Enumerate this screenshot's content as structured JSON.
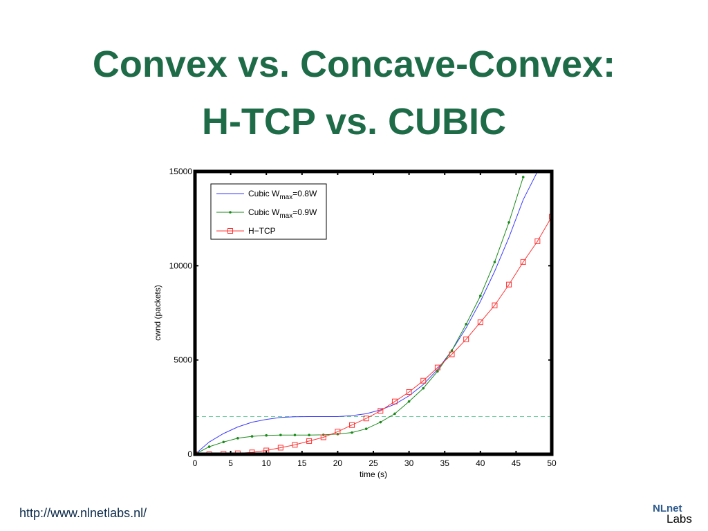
{
  "slide": {
    "title_line1": "Convex vs. Concave-Convex:",
    "title_line2": "H-TCP vs. CUBIC",
    "footer_url": "http://www.nlnetlabs.nl/",
    "logo_part1": "NLnet",
    "logo_part2": "Labs",
    "colors": {
      "title": "#1e6b48",
      "cubic_08": "#3a3aff",
      "cubic_09": "#1a8a1a",
      "htcp": "#ff3333",
      "wmax_line": "#66cc99"
    }
  },
  "chart_data": {
    "type": "line",
    "xlabel": "time (s)",
    "ylabel": "cwnd (packets)",
    "xlim": [
      0,
      50
    ],
    "ylim": [
      0,
      15000
    ],
    "xticks": [
      0,
      5,
      10,
      15,
      20,
      25,
      30,
      35,
      40,
      45,
      50
    ],
    "yticks": [
      0,
      5000,
      10000,
      15000
    ],
    "grid": false,
    "legend_position": "top-left",
    "reference_line": {
      "y": 2000,
      "style": "dashed"
    },
    "series": [
      {
        "name": "Cubic W",
        "subscript": "max",
        "suffix": "=0.8W",
        "marker": "none",
        "x": [
          0,
          2,
          4,
          6,
          8,
          10,
          12,
          14,
          16,
          18,
          20,
          22,
          24,
          26,
          28,
          30,
          32,
          34,
          36,
          38,
          40,
          42,
          44,
          46,
          48
        ],
        "y": [
          0,
          650,
          1100,
          1450,
          1700,
          1850,
          1950,
          1990,
          2000,
          2000,
          2000,
          2050,
          2150,
          2350,
          2650,
          3100,
          3700,
          4500,
          5500,
          6700,
          8100,
          9700,
          11500,
          13500,
          15000
        ]
      },
      {
        "name": "Cubic W",
        "subscript": "max",
        "suffix": "=0.9W",
        "marker": "dot",
        "x": [
          0,
          2,
          4,
          6,
          8,
          10,
          12,
          14,
          16,
          18,
          20,
          22,
          24,
          26,
          28,
          30,
          32,
          34,
          36,
          38,
          40,
          42,
          44,
          46
        ],
        "y": [
          0,
          400,
          650,
          850,
          950,
          1000,
          1020,
          1020,
          1020,
          1030,
          1070,
          1150,
          1350,
          1700,
          2150,
          2800,
          3500,
          4400,
          5500,
          6900,
          8400,
          10200,
          12300,
          14700
        ]
      },
      {
        "name": "H−TCP",
        "marker": "square",
        "x": [
          0,
          2,
          4,
          6,
          8,
          10,
          12,
          14,
          16,
          18,
          20,
          22,
          24,
          26,
          28,
          30,
          32,
          34,
          36,
          38,
          40,
          42,
          44,
          46,
          48,
          50
        ],
        "y": [
          0,
          0,
          20,
          50,
          100,
          200,
          350,
          500,
          700,
          900,
          1200,
          1550,
          1900,
          2300,
          2800,
          3300,
          3900,
          4600,
          5300,
          6100,
          7000,
          7900,
          9000,
          10200,
          11300,
          12600
        ]
      }
    ]
  }
}
